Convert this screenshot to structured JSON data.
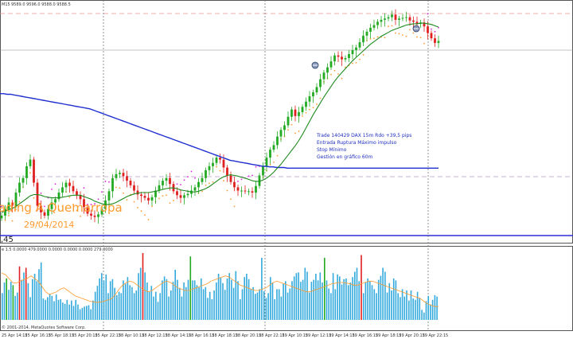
{
  "header": {
    "symbol_label": "M15",
    "ohlc": "9589.0 9596.0 9588.0 9588.5"
  },
  "annotation": {
    "lines": [
      "Trade 140429 DAX 15m Rdo +39,5 pips",
      "Entrada Ruptura Máximo impulso",
      "Stop Mínimo",
      "Gestión en gráfico 60m"
    ]
  },
  "watermark": {
    "brand": "ading A Quemarropa",
    "date": "29/04/2014"
  },
  "level_label": ",45",
  "volume_header": "e 1.5 0.0000 479.0000 0.0000 0.0000 0.0000 279.0000",
  "copyright": "© 2001-2014, MetaQuotes Software Corp.",
  "time_axis": [
    "25 Apr 14:15",
    "25 Apr 16:15",
    "25 Apr 18:15",
    "25 Apr 20:15",
    "25 Apr 22:15",
    "28 Apr 10:15",
    "28 Apr 12:15",
    "28 Apr 14:15",
    "28 Apr 16:15",
    "28 Apr 18:15",
    "28 Apr 20:15",
    "28 Apr 22:15",
    "29 Apr 10:15",
    "29 Apr 12:15",
    "29 Apr 14:15",
    "29 Apr 16:15",
    "29 Apr 18:15",
    "29 Apr 20:15",
    "29 Apr 22:15"
  ],
  "colors": {
    "bull": "#22aa22",
    "bear": "#e02020",
    "ma_fast": "#1e8a1e",
    "ma_slow": "#1f2fd0",
    "sar_upper": "#dd22dd",
    "sar_lower": "#ff9a2e",
    "vol_default": "#33aadd",
    "vol_up": "#22aa22",
    "vol_down": "#e02020",
    "vol_avg": "#ff9a2e"
  },
  "chart_data": [
    {
      "type": "candlestick",
      "title": "",
      "xlabel": "",
      "ylabel": "",
      "ylim": [
        0,
        300
      ],
      "grid": false,
      "closes": [
        195,
        205,
        215,
        210,
        230,
        245,
        252,
        270,
        280,
        245,
        210,
        200,
        195,
        205,
        215,
        220,
        230,
        238,
        245,
        240,
        232,
        226,
        220,
        208,
        198,
        195,
        193,
        197,
        205,
        218,
        232,
        252,
        258,
        260,
        255,
        248,
        241,
        233,
        227,
        225,
        222,
        218,
        223,
        233,
        241,
        248,
        252,
        243,
        232,
        226,
        222,
        226,
        228,
        233,
        238,
        246,
        252,
        264,
        270,
        275,
        283,
        280,
        268,
        256,
        246,
        238,
        233,
        233,
        232,
        232,
        230,
        240,
        256,
        270,
        283,
        295,
        302,
        315,
        325,
        332,
        345,
        356,
        346,
        352,
        360,
        368,
        376,
        382,
        390,
        402,
        412,
        420,
        429,
        438,
        436,
        432,
        434,
        440,
        446,
        450,
        458,
        468,
        474,
        480,
        484,
        489,
        492,
        494,
        496,
        500,
        492,
        494,
        495,
        496,
        491,
        489,
        486,
        488,
        482,
        472,
        464,
        457,
        460
      ],
      "ma_fast": [
        200,
        202,
        204,
        206,
        209,
        213,
        217,
        221,
        225,
        227,
        227,
        226,
        224,
        223,
        222,
        222,
        222,
        223,
        224,
        225,
        226,
        226,
        226,
        224,
        222,
        220,
        217,
        215,
        213,
        212,
        212,
        213,
        215,
        218,
        221,
        224,
        226,
        228,
        229,
        230,
        230,
        230,
        231,
        232,
        233,
        235,
        236,
        237,
        237,
        236,
        234,
        233,
        232,
        231,
        231,
        232,
        234,
        236,
        239,
        243,
        247,
        251,
        254,
        256,
        257,
        256,
        255,
        253,
        252,
        250,
        248,
        247,
        247,
        249,
        252,
        256,
        261,
        267,
        273,
        280,
        287,
        294,
        301,
        309,
        318,
        328,
        338,
        348,
        357,
        366,
        375,
        383,
        391,
        399,
        406,
        412,
        418,
        424,
        430,
        435,
        440,
        445,
        450,
        455,
        459,
        463,
        467,
        470,
        473,
        476,
        478,
        480,
        482,
        484,
        485,
        486,
        486,
        487,
        487,
        486,
        485,
        483,
        481
      ],
      "ma_slow": [
        380,
        380,
        379,
        379,
        378,
        377,
        376,
        375,
        374,
        373,
        372,
        371,
        370,
        369,
        368,
        367,
        366,
        365,
        364,
        363,
        362,
        361,
        360,
        359,
        358,
        357,
        355,
        353,
        351,
        349,
        347,
        345,
        343,
        341,
        339,
        337,
        335,
        333,
        331,
        329,
        327,
        325,
        323,
        321,
        319,
        317,
        315,
        313,
        311,
        309,
        307,
        305,
        303,
        301,
        299,
        297,
        295,
        293,
        291,
        289,
        287,
        285,
        283,
        281,
        279,
        278,
        277,
        276,
        275,
        274,
        273,
        272,
        271,
        270,
        270,
        269,
        269,
        268,
        268,
        268,
        267,
        267,
        267,
        267,
        267,
        267,
        267,
        267,
        267,
        267,
        267,
        267,
        267,
        267,
        267,
        267,
        267,
        267,
        267,
        267,
        267,
        267,
        267,
        267,
        267,
        267,
        267,
        267,
        267,
        267,
        267,
        267,
        267,
        267,
        267,
        267,
        267,
        267,
        267,
        267,
        267,
        267,
        267
      ]
    },
    {
      "type": "bar",
      "title": "",
      "xlabel": "",
      "ylabel": "",
      "ylim": [
        0,
        100
      ],
      "grid": false,
      "values": [
        40,
        56,
        62,
        45,
        57,
        52,
        36,
        41,
        80,
        60,
        71,
        78,
        55,
        34,
        61,
        69,
        58,
        76,
        86,
        32,
        30,
        34,
        39,
        36,
        28,
        38,
        30,
        31,
        26,
        24,
        30,
        23,
        29,
        21,
        30,
        23,
        16,
        18,
        20,
        21,
        22,
        16,
        29,
        42,
        51,
        62,
        70,
        59,
        68,
        40,
        58,
        61,
        48,
        37,
        42,
        40,
        59,
        54,
        64,
        52,
        49,
        40,
        44,
        70,
        78,
        100,
        71,
        56,
        42,
        51,
        35,
        42,
        27,
        40,
        59,
        65,
        61,
        35,
        44,
        57,
        75,
        60,
        48,
        35,
        56,
        49,
        60,
        95,
        59,
        59,
        52,
        49,
        62,
        46,
        49,
        33,
        42,
        31,
        44,
        56,
        69,
        63,
        55,
        45,
        62,
        70,
        60,
        48,
        73,
        58,
        31,
        46,
        64,
        69,
        61,
        46,
        49,
        39,
        41,
        46,
        93,
        43,
        33,
        40,
        64,
        56,
        31,
        46,
        46,
        35,
        54,
        58,
        41,
        47,
        58,
        65,
        70,
        71,
        57,
        60,
        78,
        72,
        41,
        57,
        60,
        69,
        59,
        71,
        56,
        93,
        59,
        47,
        40,
        70,
        46,
        68,
        65,
        53,
        61,
        62,
        52,
        56,
        64,
        72,
        78,
        58,
        97,
        40,
        56,
        62,
        58,
        52,
        46,
        40,
        60,
        66,
        78,
        72,
        41,
        55,
        44,
        62,
        59,
        40,
        34,
        46,
        35,
        44,
        29,
        44,
        32,
        30,
        42,
        33,
        15,
        11,
        28,
        36,
        23,
        30,
        37,
        35
      ],
      "colors": [
        "d",
        "d",
        "u",
        "d",
        "d",
        "u",
        "d",
        "d",
        "w",
        "d",
        "d",
        "w",
        "d",
        "d",
        "d",
        "d",
        "d",
        "d",
        "d",
        "d",
        "d",
        "d",
        "d",
        "d",
        "d",
        "d",
        "d",
        "d",
        "d",
        "d",
        "d",
        "d",
        "d",
        "d",
        "d",
        "d",
        "d",
        "d",
        "d",
        "d",
        "d",
        "d",
        "d",
        "d",
        "d",
        "d",
        "d",
        "d",
        "d",
        "d",
        "d",
        "d",
        "d",
        "d",
        "d",
        "d",
        "d",
        "d",
        "d",
        "d",
        "d",
        "d",
        "d",
        "d",
        "d",
        "w",
        "d",
        "d",
        "d",
        "d",
        "d",
        "d",
        "d",
        "d",
        "d",
        "d",
        "d",
        "d",
        "d",
        "d",
        "d",
        "d",
        "d",
        "d",
        "d",
        "d",
        "d",
        "u",
        "d",
        "d",
        "d",
        "d",
        "d",
        "d",
        "d",
        "d",
        "d",
        "d",
        "d",
        "d",
        "d",
        "d",
        "d",
        "d",
        "d",
        "d",
        "d",
        "d",
        "d",
        "d",
        "d",
        "d",
        "d",
        "d",
        "d",
        "d",
        "d",
        "d",
        "d",
        "d",
        "d",
        "d",
        "d",
        "d",
        "d",
        "d",
        "d",
        "d",
        "d",
        "d",
        "d",
        "d",
        "d",
        "d",
        "d",
        "d",
        "d",
        "d",
        "d",
        "d",
        "d",
        "d",
        "d",
        "d",
        "d",
        "d",
        "d",
        "d",
        "d",
        "u",
        "d",
        "d",
        "d",
        "d",
        "d",
        "d",
        "d",
        "d",
        "d",
        "d",
        "d",
        "d",
        "d",
        "d",
        "d",
        "d",
        "w",
        "d",
        "d",
        "d",
        "d",
        "d",
        "d",
        "d",
        "d",
        "d",
        "d",
        "d",
        "d",
        "d",
        "d",
        "d",
        "d",
        "d",
        "d",
        "d",
        "d",
        "d",
        "d",
        "d",
        "d",
        "d",
        "d",
        "d",
        "d",
        "d",
        "d",
        "d",
        "d",
        "d",
        "d",
        "d"
      ],
      "average": [
        70,
        68,
        62,
        56,
        55,
        58,
        60,
        62,
        66,
        62,
        58,
        50,
        42,
        38,
        40,
        42,
        46,
        48,
        44,
        40,
        36,
        34,
        32,
        30,
        28,
        27,
        26,
        27,
        28,
        30,
        32,
        38,
        46,
        52,
        56,
        58,
        56,
        52,
        48,
        44,
        42,
        44,
        48,
        52,
        56,
        58,
        56,
        52,
        48,
        46,
        44,
        44,
        46,
        48,
        50,
        52,
        54,
        58,
        60,
        62,
        64,
        66,
        64,
        60,
        56,
        52,
        50,
        48,
        46,
        44,
        44,
        46,
        48,
        52,
        56,
        58,
        56,
        54,
        52,
        50,
        48,
        46,
        44,
        42,
        42,
        44,
        46,
        48,
        50,
        52,
        54,
        55,
        56,
        56,
        55,
        54,
        52,
        52,
        54,
        56,
        58,
        58,
        56,
        54,
        52,
        50,
        48,
        46,
        44,
        42,
        40,
        38,
        36,
        34,
        32,
        28,
        24,
        22,
        20,
        20
      ]
    }
  ]
}
